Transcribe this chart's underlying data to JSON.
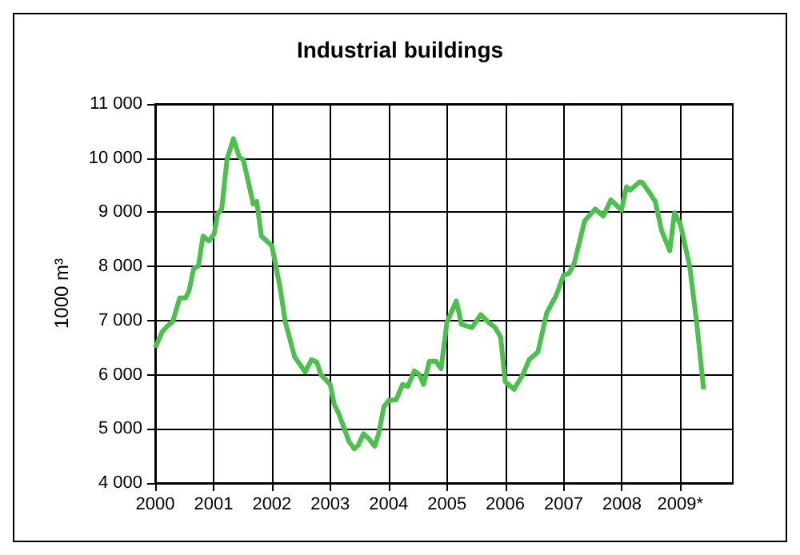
{
  "chart_data": {
    "type": "line",
    "title": "Industrial buildings",
    "ylabel": "1000 m³",
    "x": [
      2000.0,
      2000.12,
      2000.21,
      2000.3,
      2000.42,
      2000.52,
      2000.58,
      2000.66,
      2000.74,
      2000.82,
      2000.92,
      2001.01,
      2001.07,
      2001.14,
      2001.23,
      2001.34,
      2001.44,
      2001.51,
      2001.68,
      2001.74,
      2001.82,
      2002.0,
      2002.14,
      2002.23,
      2002.39,
      2002.57,
      2002.68,
      2002.77,
      2002.84,
      2003.0,
      2003.07,
      2003.15,
      2003.32,
      2003.41,
      2003.48,
      2003.57,
      2003.66,
      2003.76,
      2003.83,
      2003.92,
      2004.0,
      2004.13,
      2004.24,
      2004.33,
      2004.44,
      2004.53,
      2004.6,
      2004.7,
      2004.81,
      2004.9,
      2005.0,
      2005.16,
      2005.25,
      2005.43,
      2005.58,
      2005.72,
      2005.82,
      2005.92,
      2006.0,
      2006.15,
      2006.3,
      2006.41,
      2006.56,
      2006.71,
      2006.87,
      2007.0,
      2007.09,
      2007.18,
      2007.36,
      2007.54,
      2007.68,
      2007.81,
      2007.99,
      2008.08,
      2008.14,
      2008.3,
      2008.35,
      2008.46,
      2008.57,
      2008.68,
      2008.82,
      2008.9,
      2009.0,
      2009.16,
      2009.28,
      2009.4
    ],
    "series": [
      {
        "color": "#4cc04c",
        "values": [
          6500,
          6790,
          6900,
          6980,
          7420,
          7420,
          7550,
          7960,
          8010,
          8560,
          8470,
          8600,
          8970,
          9060,
          9970,
          10360,
          10020,
          9970,
          9150,
          9200,
          8560,
          8380,
          7610,
          6970,
          6330,
          6050,
          6280,
          6230,
          6000,
          5820,
          5450,
          5270,
          4770,
          4630,
          4700,
          4910,
          4820,
          4680,
          4910,
          5410,
          5520,
          5540,
          5820,
          5780,
          6070,
          6000,
          5820,
          6250,
          6250,
          6110,
          6970,
          7360,
          6930,
          6870,
          7110,
          6960,
          6880,
          6700,
          5870,
          5730,
          6000,
          6280,
          6420,
          7140,
          7460,
          7840,
          7870,
          8050,
          8840,
          9060,
          8930,
          9230,
          9040,
          9470,
          9410,
          9560,
          9550,
          9380,
          9200,
          8660,
          8290,
          8990,
          8780,
          8010,
          6970,
          5730
        ]
      }
    ],
    "xlim": [
      2000,
      2009.9
    ],
    "xticks": [
      2000,
      2001,
      2002,
      2003,
      2004,
      2005,
      2006,
      2007,
      2008,
      {
        "value": 2009,
        "label": "2009*"
      }
    ],
    "ylim": [
      4000,
      11000
    ],
    "yticks": [
      {
        "value": 4000,
        "label": "4 000"
      },
      {
        "value": 5000,
        "label": "5 000"
      },
      {
        "value": 6000,
        "label": "6 000"
      },
      {
        "value": 7000,
        "label": "7 000"
      },
      {
        "value": 8000,
        "label": "8 000"
      },
      {
        "value": 9000,
        "label": "9 000"
      },
      {
        "value": 10000,
        "label": "10 000"
      },
      {
        "value": 11000,
        "label": "11 000"
      }
    ],
    "grid": true,
    "marker": "none",
    "line_style": "solid"
  }
}
